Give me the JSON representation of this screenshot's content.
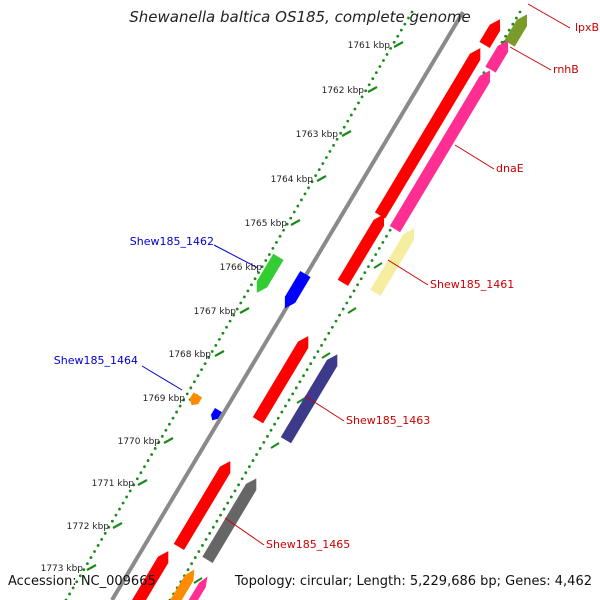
{
  "title": "Shewanella baltica OS185, complete genome",
  "accession_label": "Accession: NC_009665",
  "summary": "Topology: circular; Length: 5,229,686 bp; Genes: 4,462",
  "kbp_ticks": [
    "1761 kbp",
    "1762 kbp",
    "1763 kbp",
    "1764 kbp",
    "1765 kbp",
    "1766 kbp",
    "1767 kbp",
    "1768 kbp",
    "1769 kbp",
    "1770 kbp",
    "1771 kbp",
    "1772 kbp",
    "1773 kbp"
  ],
  "gene_labels_forward": [
    "Shew185_1462",
    "Shew185_1464"
  ],
  "gene_labels_reverse": [
    "lpxB",
    "rnhB",
    "dnaE",
    "Shew185_1461",
    "Shew185_1463",
    "Shew185_1465"
  ],
  "colors": {
    "cds": "#ff0000",
    "gene_magenta": "#ff2e93",
    "gene_green": "#33cc33",
    "gene_blue": "#0000ff",
    "gene_orange": "#ff8c00",
    "gene_purple": "#3d3a8c",
    "gene_gray": "#666666",
    "gene_olive": "#7a9a2a",
    "gene_pale_yellow": "#f5eea0",
    "backbone": "#8a8a8a",
    "dots": "#1a8a1a",
    "label_forward": "#0000cc",
    "label_reverse": "#cc0000"
  }
}
